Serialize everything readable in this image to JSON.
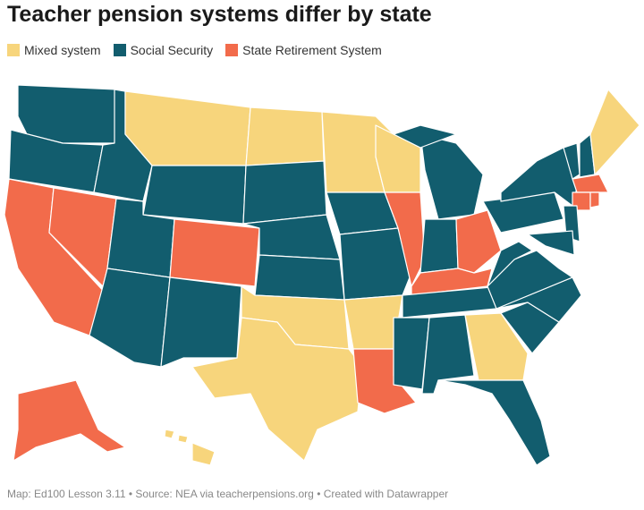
{
  "title": "Teacher pension systems differ by state",
  "legend": [
    {
      "label": "Mixed system",
      "color": "#f7d57c"
    },
    {
      "label": "Social Security",
      "color": "#125d6e"
    },
    {
      "label": "State Retirement System",
      "color": "#f26b4b"
    }
  ],
  "footer": "Map: Ed100 Lesson 3.11 • Source: NEA via teacherpensions.org • Created with Datawrapper"
}
